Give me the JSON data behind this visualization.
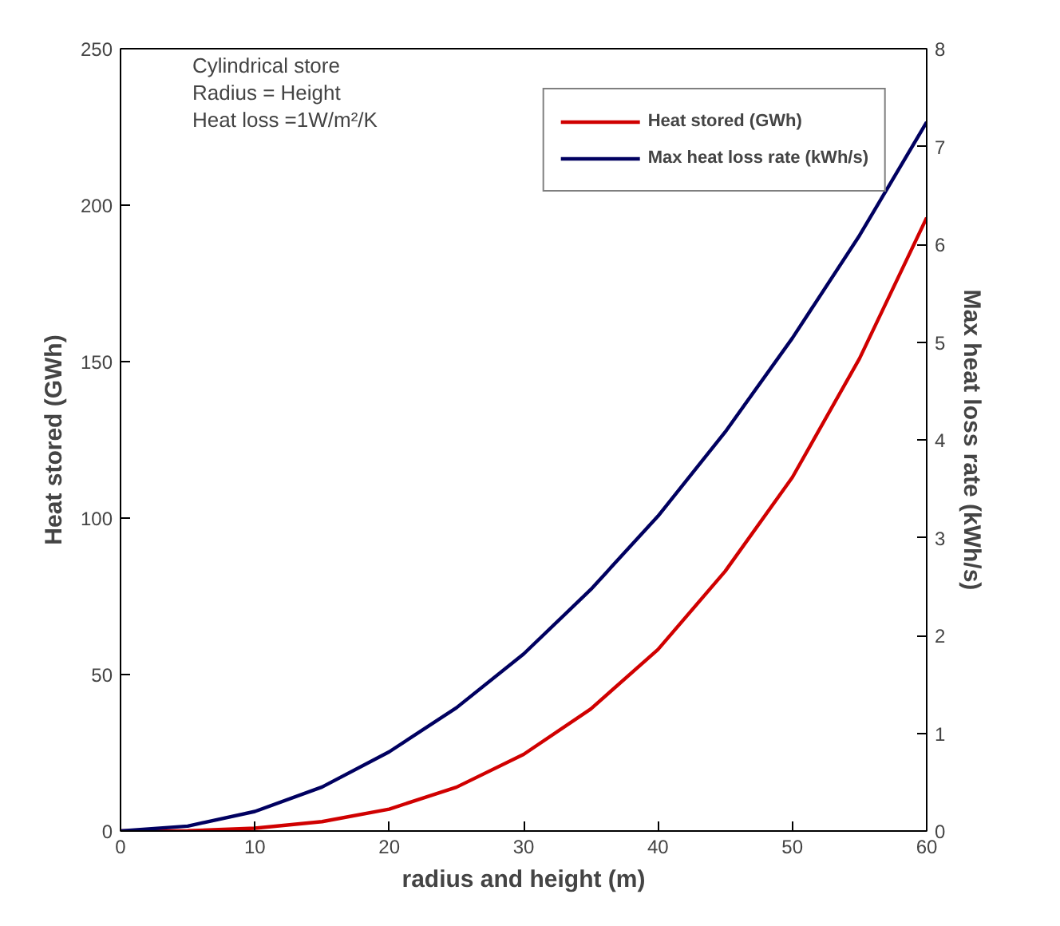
{
  "chart_data": {
    "type": "line",
    "xlabel": "radius and height (m)",
    "ylabel": "Heat stored (GWh)",
    "y2label": "Max heat loss rate (kWh/s)",
    "x": [
      0,
      5,
      10,
      15,
      20,
      25,
      30,
      35,
      40,
      45,
      50,
      55,
      60
    ],
    "series": [
      {
        "name": "Heat stored (GWh)",
        "color": "#d00000",
        "values": [
          0,
          0.1,
          0.9,
          3,
          7,
          14,
          24.5,
          39,
          58,
          83,
          113,
          151,
          196
        ]
      },
      {
        "name": "Max heat loss rate (kWh/s)",
        "color": "#000060",
        "axis": "y2",
        "values": [
          0,
          0.05,
          0.2,
          0.45,
          0.81,
          1.26,
          1.81,
          2.47,
          3.22,
          4.08,
          5.04,
          6.09,
          7.25
        ]
      }
    ],
    "xlim": [
      0,
      60
    ],
    "xticks": [
      0,
      10,
      20,
      30,
      40,
      50,
      60
    ],
    "ylim": [
      0,
      250
    ],
    "yticks": [
      0,
      50,
      100,
      150,
      200,
      250
    ],
    "y2lim": [
      0,
      8
    ],
    "y2ticks": [
      0,
      1,
      2,
      3,
      4,
      5,
      6,
      7,
      8
    ],
    "annotations": [
      "Cylindrical store",
      "Radius = Height",
      "Heat loss =1W/m²/K"
    ],
    "legend": "top right",
    "grid": false,
    "marker": "none",
    "line_style": "solid"
  }
}
